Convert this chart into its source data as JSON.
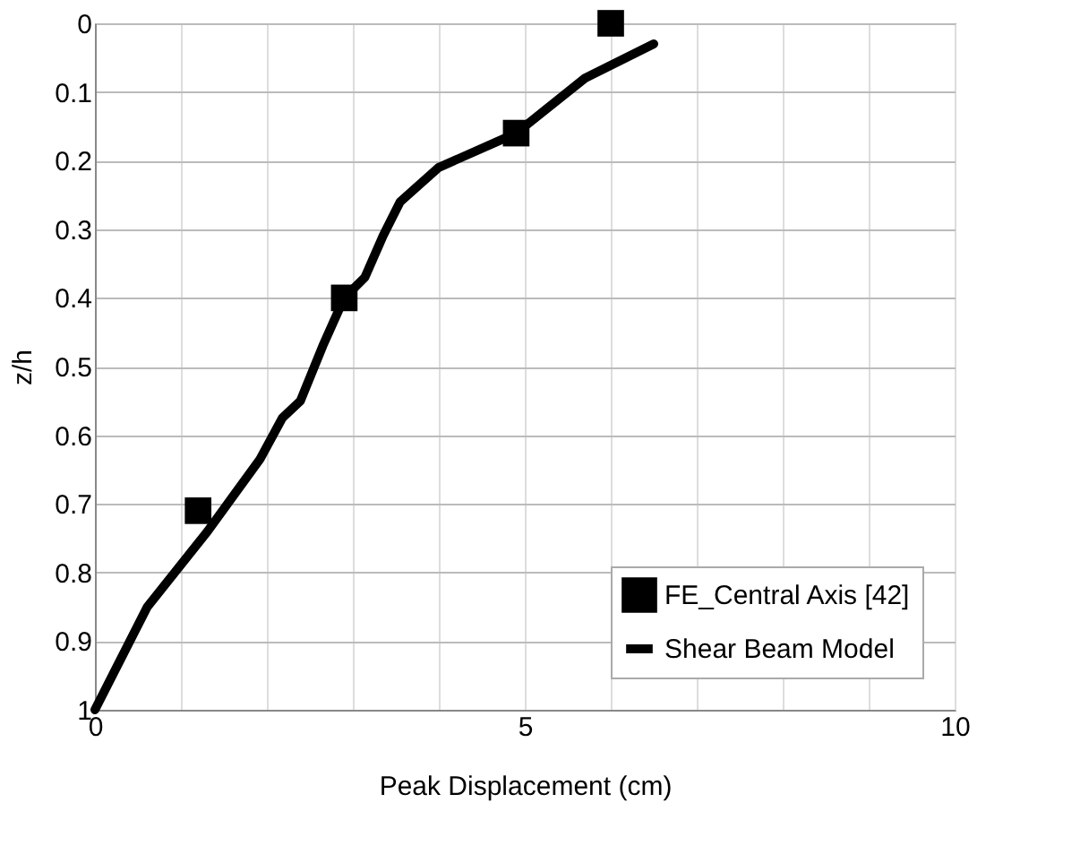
{
  "chart_data": {
    "type": "line",
    "xlabel": "Peak Displacement (cm)",
    "ylabel": "z/h",
    "xlim": [
      0,
      10
    ],
    "ylim": [
      1,
      0
    ],
    "xticks": [
      0,
      {
        "value": 1,
        "label": null
      },
      {
        "value": 2,
        "label": null
      },
      {
        "value": 3,
        "label": null
      },
      {
        "value": 4,
        "label": null
      },
      5,
      {
        "value": 6,
        "label": null
      },
      {
        "value": 7,
        "label": null
      },
      {
        "value": 8,
        "label": null
      },
      {
        "value": 9,
        "label": null
      },
      10
    ],
    "yticks": [
      0,
      0.1,
      0.2,
      0.3,
      0.4,
      0.5,
      0.6,
      0.7,
      0.8,
      0.9,
      1
    ],
    "grid": true,
    "legend": "bottom right",
    "series": [
      {
        "name": "FE_Central Axis [42]",
        "type": "scatter",
        "marker": "square",
        "color": "#000000",
        "x": [
          6.0,
          4.9,
          2.9,
          1.2
        ],
        "values": [
          0.0,
          0.16,
          0.4,
          0.71
        ]
      },
      {
        "name": "Shear Beam Model",
        "marker": "none",
        "line_style": "solid",
        "color": "#000000",
        "x": [
          6.5,
          5.7,
          4.9,
          4.0,
          3.55,
          3.35,
          3.14,
          2.9,
          2.65,
          2.39,
          2.18,
          1.92,
          1.31,
          0.61,
          0
        ],
        "values": [
          0.03,
          0.08,
          0.16,
          0.21,
          0.26,
          0.31,
          0.37,
          0.4,
          0.47,
          0.55,
          0.575,
          0.635,
          0.74,
          0.85,
          1.0
        ]
      }
    ]
  }
}
